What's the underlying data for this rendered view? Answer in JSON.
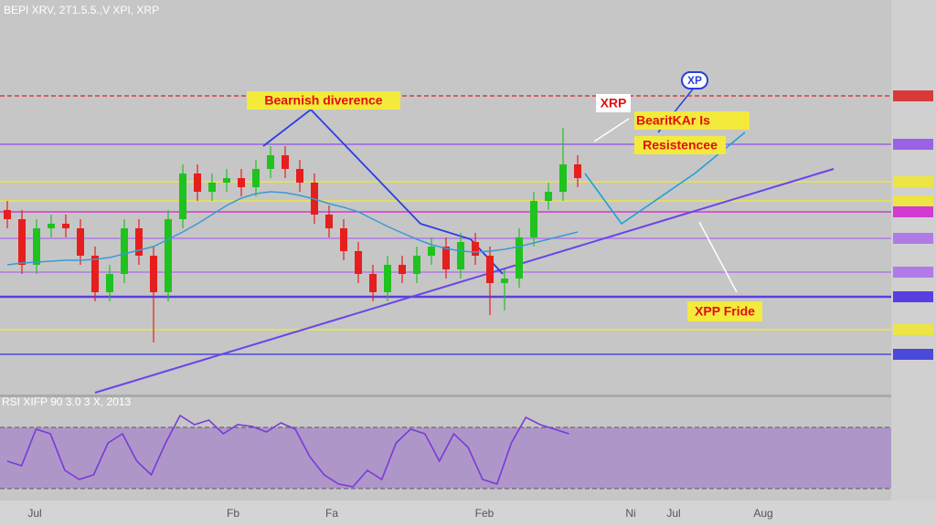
{
  "header": {
    "title": "BEPI XRV, 2T1.5.5.,V XPI, XRP"
  },
  "chart_data": {
    "type": "candlestick",
    "open": [
      200,
      190,
      140,
      180,
      185,
      180,
      150,
      110,
      130,
      180,
      150,
      110,
      190,
      240,
      220,
      230,
      235,
      225,
      245,
      260,
      245,
      230,
      195,
      180,
      155,
      130,
      110,
      140,
      130,
      150,
      160,
      135,
      165,
      150,
      120,
      125,
      170,
      210,
      220,
      250
    ],
    "high": [
      210,
      200,
      190,
      195,
      195,
      190,
      160,
      140,
      190,
      190,
      160,
      200,
      250,
      250,
      240,
      245,
      245,
      255,
      270,
      270,
      255,
      240,
      205,
      190,
      165,
      140,
      150,
      150,
      160,
      170,
      170,
      175,
      175,
      160,
      135,
      180,
      220,
      230,
      290,
      260
    ],
    "low": [
      180,
      130,
      130,
      170,
      170,
      140,
      100,
      100,
      120,
      140,
      55,
      100,
      180,
      210,
      210,
      220,
      215,
      215,
      235,
      235,
      220,
      185,
      170,
      145,
      120,
      100,
      100,
      120,
      120,
      140,
      125,
      125,
      140,
      85,
      90,
      115,
      160,
      200,
      210,
      225
    ],
    "close": [
      190,
      140,
      180,
      185,
      180,
      150,
      110,
      130,
      180,
      150,
      110,
      190,
      240,
      220,
      230,
      235,
      225,
      245,
      260,
      245,
      230,
      195,
      180,
      155,
      130,
      110,
      140,
      130,
      150,
      160,
      135,
      165,
      150,
      120,
      125,
      170,
      210,
      220,
      250,
      235
    ],
    "moving_average": [
      140,
      142,
      143,
      144,
      145,
      145,
      146,
      148,
      152,
      156,
      160,
      168,
      176,
      185,
      195,
      205,
      213,
      218,
      220,
      219,
      216,
      212,
      207,
      203,
      198,
      190,
      182,
      175,
      168,
      162,
      158,
      155,
      154,
      155,
      157,
      160,
      164,
      168,
      172,
      176
    ],
    "ylim": [
      0,
      430
    ],
    "levels": [
      {
        "value": 325,
        "color": "#d83a3a"
      },
      {
        "value": 272,
        "color": "#9a62e6"
      },
      {
        "value": 231,
        "color": "#ece545"
      },
      {
        "value": 210,
        "color": "#ece545"
      },
      {
        "value": 198,
        "color": "#d23ad2"
      },
      {
        "value": 169,
        "color": "#b17ae6"
      },
      {
        "value": 132,
        "color": "#b17ae6"
      },
      {
        "value": 105,
        "color": "#5a3ee0"
      },
      {
        "value": 69,
        "color": "#ece545"
      },
      {
        "value": 42,
        "color": "#4a4ad8"
      }
    ],
    "x_labels": [
      "Jul",
      "Fb",
      "Fa",
      "Feb",
      "Ni",
      "Jul",
      "Aug"
    ],
    "annotations": [
      "Bearnish diverence",
      "XRP",
      "BearitKAr Is",
      "Resistencee",
      "XPP Fride",
      "XP"
    ],
    "rsi": {
      "label": "RSI XIFP 90 3.0 3 X, 2013",
      "values": [
        40,
        35,
        75,
        70,
        30,
        20,
        25,
        60,
        70,
        40,
        25,
        60,
        90,
        80,
        85,
        70,
        80,
        78,
        72,
        82,
        75,
        45,
        25,
        15,
        12,
        30,
        20,
        60,
        75,
        70,
        40,
        70,
        55,
        20,
        15,
        60,
        88,
        80,
        75,
        70
      ],
      "ylim": [
        0,
        100
      ],
      "upper": 77,
      "lower": 10
    }
  }
}
